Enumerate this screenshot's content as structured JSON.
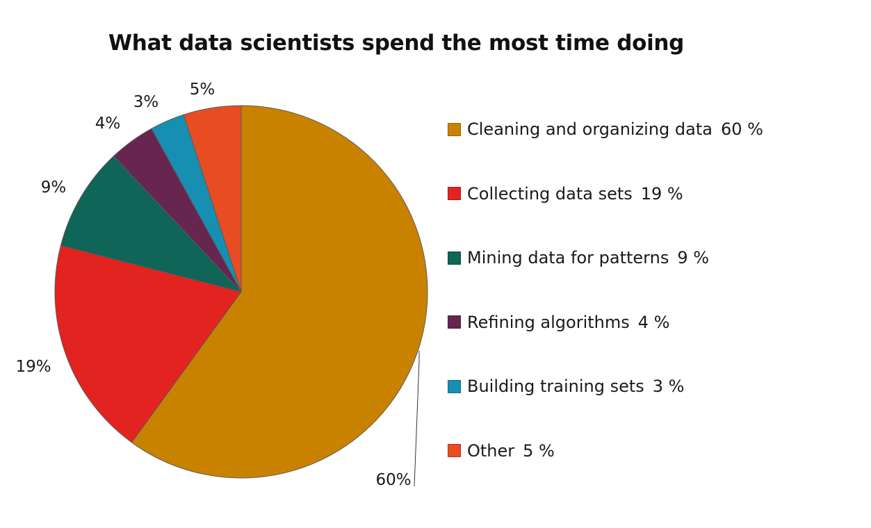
{
  "chart_data": {
    "type": "pie",
    "title": "What data scientists spend the most time doing",
    "start_angle_deg": 0,
    "direction": "clockwise",
    "slices": [
      {
        "label": "Cleaning and organizing data",
        "value": 60,
        "pie_label": "60%",
        "legend_value": "60 %",
        "color": "#c98200"
      },
      {
        "label": "Collecting data sets",
        "value": 19,
        "pie_label": "19%",
        "legend_value": "19 %",
        "color": "#e3231f"
      },
      {
        "label": "Mining data for patterns",
        "value": 9,
        "pie_label": "9%",
        "legend_value": "9 %",
        "color": "#0f6557"
      },
      {
        "label": "Refining algorithms",
        "value": 4,
        "pie_label": "4%",
        "legend_value": "4 %",
        "color": "#66264f"
      },
      {
        "label": "Building training sets",
        "value": 3,
        "pie_label": "3%",
        "legend_value": "3 %",
        "color": "#168fb3"
      },
      {
        "label": "Other",
        "value": 5,
        "pie_label": "5%",
        "legend_value": "5 %",
        "color": "#e84d22"
      }
    ],
    "legend_position": "right"
  }
}
